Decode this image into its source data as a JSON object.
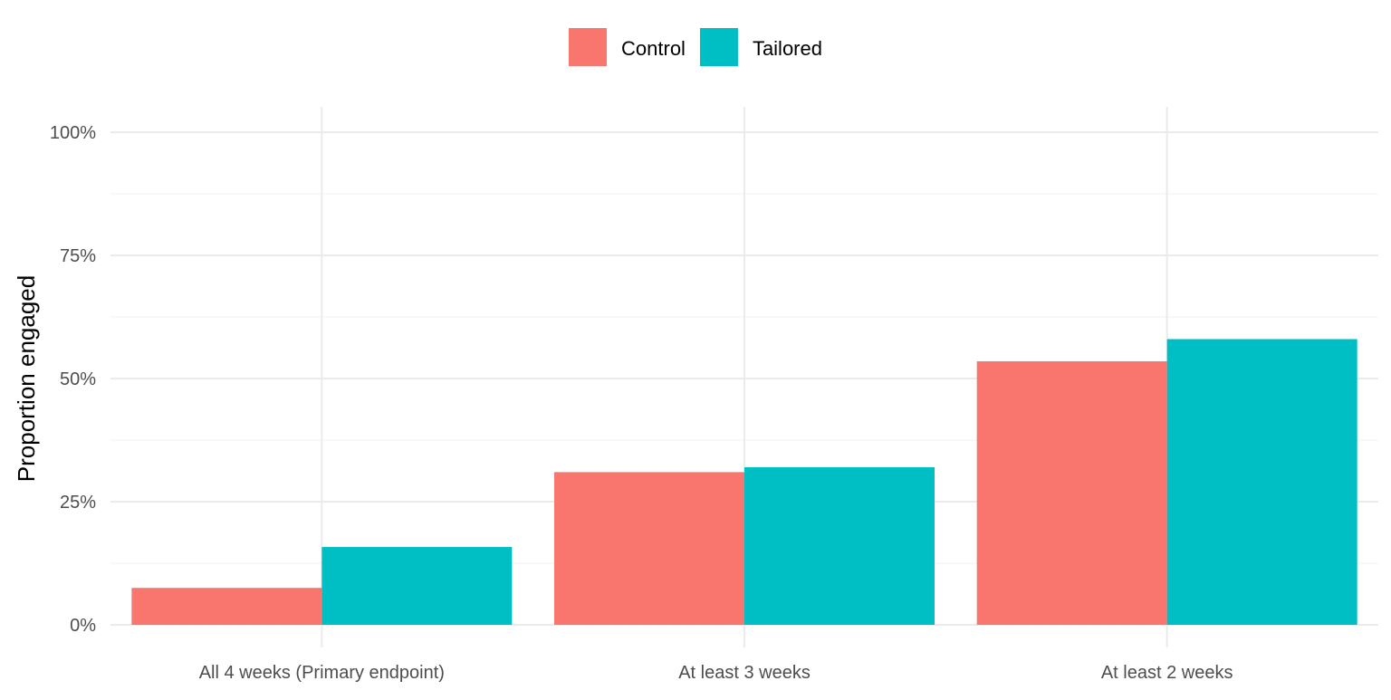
{
  "chart_data": {
    "type": "bar",
    "categories": [
      "All 4 weeks (Primary endpoint)",
      "At least 3 weeks",
      "At least 2 weeks"
    ],
    "series": [
      {
        "name": "Control",
        "color": "#F8766D",
        "values": [
          0.075,
          0.31,
          0.535
        ]
      },
      {
        "name": "Tailored",
        "color": "#00BFC4",
        "values": [
          0.158,
          0.32,
          0.58
        ]
      }
    ],
    "xlabel": "",
    "ylabel": "Proportion engaged",
    "ylim": [
      0,
      1
    ],
    "yticks": [
      0,
      0.25,
      0.5,
      0.75,
      1
    ],
    "ytick_labels": [
      "0%",
      "25%",
      "50%",
      "75%",
      "100%"
    ],
    "grid": true,
    "legend_position": "top"
  }
}
